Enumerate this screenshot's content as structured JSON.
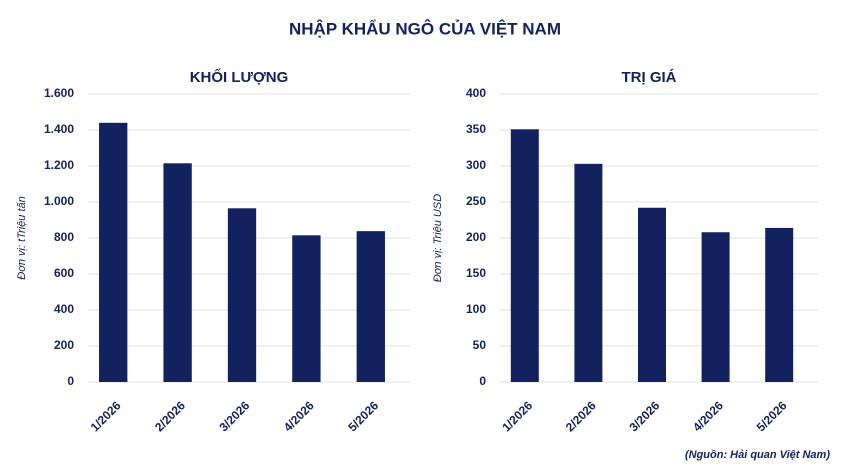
{
  "title": "NHẬP KHẨU NGÔ CỦA VIỆT NAM",
  "source": "(Nguồn: Hải quan Việt Nam)",
  "chart_data": [
    {
      "type": "bar",
      "title": "KHỐI LƯỢNG",
      "y_label": "Đơn vị: tTriệu tấn",
      "categories": [
        "1/2026",
        "2/2026",
        "3/2026",
        "4/2026",
        "5/2026"
      ],
      "values": [
        1440,
        1215,
        965,
        815,
        838
      ],
      "color": "#13215e",
      "ylim": [
        0,
        1600
      ],
      "yticks": [
        0,
        200,
        400,
        600,
        800,
        {
          "value": 1000,
          "label": "1.000"
        },
        {
          "value": 1200,
          "label": "1.200"
        },
        {
          "value": 1400,
          "label": "1.400"
        },
        {
          "value": 1600,
          "label": "1.600"
        }
      ],
      "grid": true
    },
    {
      "type": "bar",
      "title": "TRỊ GIÁ",
      "y_label": "Đơn vị: Triệu USD",
      "categories": [
        "1/2026",
        "2/2026",
        "3/2026",
        "4/2026",
        "5/2026"
      ],
      "values": [
        351,
        303,
        242,
        208,
        214
      ],
      "color": "#13215e",
      "ylim": [
        0,
        400
      ],
      "yticks": [
        0,
        50,
        100,
        150,
        200,
        250,
        300,
        350,
        400
      ],
      "grid": true
    }
  ]
}
